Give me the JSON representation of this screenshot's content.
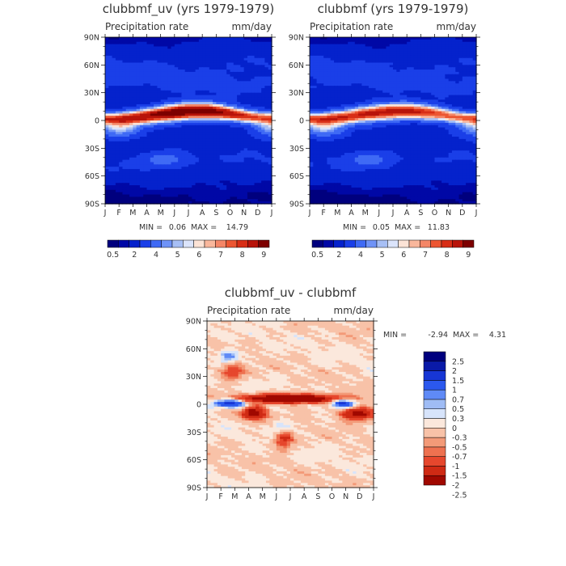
{
  "palette": {
    "abs": [
      "#00007e",
      "#0008a6",
      "#0522cc",
      "#1a3fe8",
      "#3f6af5",
      "#6f93f7",
      "#a7bff5",
      "#dbe4fb",
      "#fce3d6",
      "#f9b79c",
      "#f48667",
      "#ec5632",
      "#d82e16",
      "#b8140a",
      "#7d0000"
    ],
    "diff": [
      "#00007e",
      "#0a1aa8",
      "#1736d5",
      "#2b58ee",
      "#5f8af6",
      "#9fbcf5",
      "#d7e4fb",
      "#fbe8dc",
      "#f8c2a8",
      "#f39a78",
      "#ee7150",
      "#e6472d",
      "#cf2a14",
      "#a00800"
    ]
  },
  "charts": [
    {
      "title": "clubbmf_uv (yrs 1979-1979)",
      "subtitle_left": "Precipitation rate",
      "subtitle_right": "mm/day",
      "min_label": "MIN =",
      "min_value": "0.06",
      "max_label": "MAX =",
      "max_value": "14.79",
      "colorbar_labels": [
        "0.5",
        "2",
        "4",
        "5",
        "6",
        "7",
        "8",
        "9"
      ]
    },
    {
      "title": "clubbmf (yrs 1979-1979)",
      "subtitle_left": "Precipitation rate",
      "subtitle_right": "mm/day",
      "min_label": "MIN =",
      "min_value": "0.05",
      "max_label": "MAX =",
      "max_value": "11.83",
      "colorbar_labels": [
        "0.5",
        "2",
        "4",
        "5",
        "6",
        "7",
        "8",
        "9"
      ]
    },
    {
      "title": "clubbmf_uv - clubbmf",
      "subtitle_left": "Precipitation rate",
      "subtitle_right": "mm/day",
      "min_label": "MIN =",
      "min_value": "-2.94",
      "max_label": "MAX =",
      "max_value": "4.31",
      "colorbar_labels": [
        "2.5",
        "2",
        "1.5",
        "1",
        "0.7",
        "0.5",
        "0.3",
        "0",
        "-0.3",
        "-0.5",
        "-0.7",
        "-1",
        "-1.5",
        "-2",
        "-2.5"
      ]
    }
  ],
  "chart_data": [
    {
      "type": "heatmap",
      "title": "clubbmf_uv (yrs 1979-1979)",
      "subtitle": "Precipitation rate",
      "units": "mm/day",
      "x_ticks": [
        "J",
        "F",
        "M",
        "A",
        "M",
        "J",
        "J",
        "A",
        "S",
        "O",
        "N",
        "D",
        "J"
      ],
      "y_ticks": [
        "90N",
        "60N",
        "30N",
        "0",
        "30S",
        "60S",
        "90S"
      ],
      "xlim": [
        0,
        12
      ],
      "ylim": [
        -90,
        90
      ],
      "min": 0.06,
      "max": 14.79,
      "levels": [
        0.5,
        1,
        2,
        3,
        4,
        4.5,
        5,
        5.5,
        6,
        6.5,
        7,
        7.5,
        8,
        9
      ]
    },
    {
      "type": "heatmap",
      "title": "clubbmf (yrs 1979-1979)",
      "subtitle": "Precipitation rate",
      "units": "mm/day",
      "x_ticks": [
        "J",
        "F",
        "M",
        "A",
        "M",
        "J",
        "J",
        "A",
        "S",
        "O",
        "N",
        "D",
        "J"
      ],
      "y_ticks": [
        "90N",
        "60N",
        "30N",
        "0",
        "30S",
        "60S",
        "90S"
      ],
      "xlim": [
        0,
        12
      ],
      "ylim": [
        -90,
        90
      ],
      "min": 0.05,
      "max": 11.83,
      "levels": [
        0.5,
        1,
        2,
        3,
        4,
        4.5,
        5,
        5.5,
        6,
        6.5,
        7,
        7.5,
        8,
        9
      ]
    },
    {
      "type": "heatmap",
      "title": "clubbmf_uv - clubbmf",
      "subtitle": "Precipitation rate",
      "units": "mm/day",
      "x_ticks": [
        "J",
        "F",
        "M",
        "A",
        "M",
        "J",
        "J",
        "A",
        "S",
        "O",
        "N",
        "D",
        "J"
      ],
      "y_ticks": [
        "90N",
        "60N",
        "30N",
        "0",
        "30S",
        "60S",
        "90S"
      ],
      "xlim": [
        0,
        12
      ],
      "ylim": [
        -90,
        90
      ],
      "min": -2.94,
      "max": 4.31,
      "levels": [
        -2.5,
        -2,
        -1.5,
        -1,
        -0.7,
        -0.5,
        -0.3,
        0,
        0.3,
        0.5,
        0.7,
        1,
        1.5,
        2,
        2.5
      ]
    }
  ]
}
